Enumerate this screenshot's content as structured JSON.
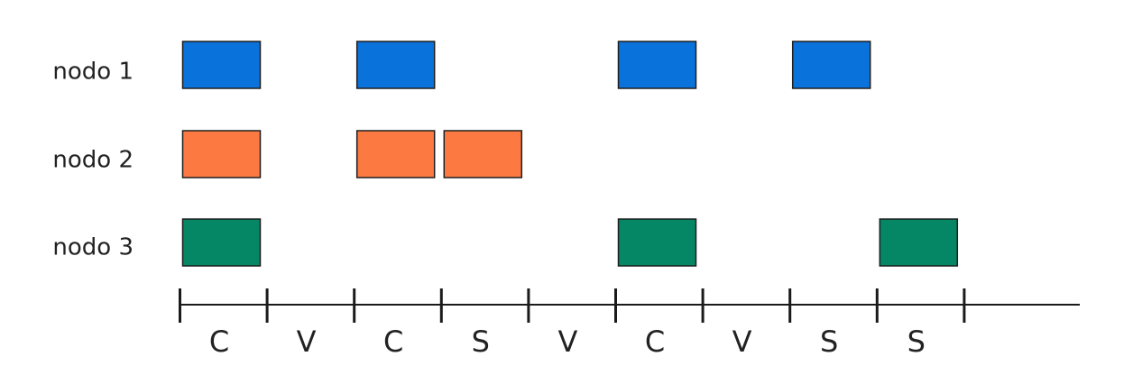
{
  "nodes": [
    {
      "label": "nodo 1",
      "color": "#0a72db",
      "active_slots": [
        0,
        2,
        5,
        7
      ]
    },
    {
      "label": "nodo 2",
      "color": "#fc7a42",
      "active_slots": [
        0,
        2,
        3
      ]
    },
    {
      "label": "nodo 3",
      "color": "#058664",
      "active_slots": [
        0,
        5,
        8
      ]
    }
  ],
  "slots": [
    "C",
    "V",
    "C",
    "S",
    "V",
    "C",
    "V",
    "S",
    "S"
  ]
}
